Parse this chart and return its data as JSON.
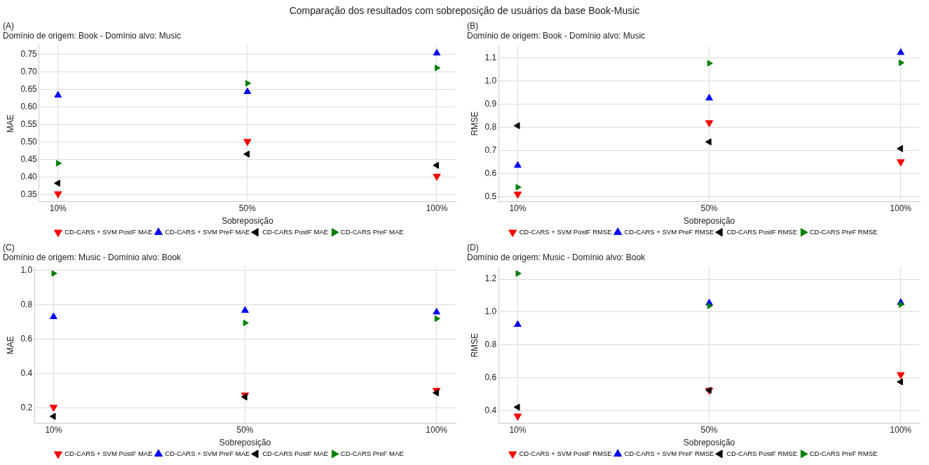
{
  "chart_data": [
    {
      "type": "scatter",
      "title": "(A)",
      "subtitle": "Domínio de origem: Book - Domínio alvo: Music",
      "annotations": [
        "Comparação dos resultados com sobreposição de usuários da base Book-Music"
      ],
      "xlabel": "Sobreposição",
      "ylabel": "MAE",
      "categories": [
        "10%",
        "50%",
        "100%"
      ],
      "ylim": [
        0.329,
        0.775
      ],
      "yticks": [
        {
          "value": 0.35,
          "label": "0.35"
        },
        {
          "value": 0.4,
          "label": "0.40"
        },
        {
          "value": 0.45,
          "label": "0.45"
        },
        {
          "value": 0.5,
          "label": "0.50"
        },
        {
          "value": 0.55,
          "label": "0.55"
        },
        {
          "value": 0.6,
          "label": "0.60"
        },
        {
          "value": 0.65,
          "label": "0.65"
        },
        {
          "value": 0.7,
          "label": "0.70"
        },
        {
          "value": 0.75,
          "label": "0.75"
        }
      ],
      "grid": true,
      "legend": "bottom",
      "marker": "triangle",
      "series": [
        {
          "name": "CD-CARS + SVM PostF MAE",
          "color": "#ff0000",
          "values": [
            0.352,
            0.501,
            0.402
          ]
        },
        {
          "name": "CD-CARS + SVM PreF MAE",
          "color": "#0000ff",
          "values": [
            0.633,
            0.643,
            0.753
          ]
        },
        {
          "name": "CD-CARS PostF MAE",
          "color": "#000000",
          "values": [
            0.382,
            0.465,
            0.433
          ]
        },
        {
          "name": "CD-CARS PreF MAE",
          "color": "#008000",
          "values": [
            0.439,
            0.667,
            0.711
          ]
        }
      ]
    },
    {
      "type": "scatter",
      "title": "(B)",
      "subtitle": "Domínio de origem: Book - Domínio alvo: Music",
      "xlabel": "Sobreposição",
      "ylabel": "RMSE",
      "categories": [
        "10%",
        "50%",
        "100%"
      ],
      "ylim": [
        0.478,
        1.154
      ],
      "yticks": [
        {
          "value": 0.5,
          "label": "0.5"
        },
        {
          "value": 0.6,
          "label": "0.6"
        },
        {
          "value": 0.7,
          "label": "0.7"
        },
        {
          "value": 0.8,
          "label": "0.8"
        },
        {
          "value": 0.9,
          "label": "0.9"
        },
        {
          "value": 1.0,
          "label": "1.0"
        },
        {
          "value": 1.1,
          "label": "1.1"
        }
      ],
      "grid": true,
      "legend": "bottom",
      "marker": "triangle",
      "series": [
        {
          "name": "CD-CARS + SVM PostF RMSE",
          "color": "#ff0000",
          "values": [
            0.511,
            0.82,
            0.651
          ]
        },
        {
          "name": "CD-CARS + SVM PreF RMSE",
          "color": "#0000ff",
          "values": [
            0.635,
            0.926,
            1.123
          ]
        },
        {
          "name": "CD-CARS PostF RMSE",
          "color": "#000000",
          "values": [
            0.807,
            0.737,
            0.708
          ]
        },
        {
          "name": "CD-CARS PreF RMSE",
          "color": "#008000",
          "values": [
            0.541,
            1.077,
            1.079
          ]
        }
      ]
    },
    {
      "type": "scatter",
      "title": "(C)",
      "subtitle": "Domínio de origem: Music - Domínio alvo: Book",
      "xlabel": "Sobreposição",
      "ylabel": "MAE",
      "categories": [
        "10%",
        "50%",
        "100%"
      ],
      "ylim": [
        0.111,
        1.02
      ],
      "yticks": [
        {
          "value": 0.2,
          "label": "0.2"
        },
        {
          "value": 0.4,
          "label": "0.4"
        },
        {
          "value": 0.6,
          "label": "0.6"
        },
        {
          "value": 0.8,
          "label": "0.8"
        },
        {
          "value": 1.0,
          "label": "1.0"
        }
      ],
      "grid": true,
      "legend": "bottom",
      "marker": "triangle",
      "series": [
        {
          "name": "CD-CARS + SVM PostF MAE",
          "color": "#ff0000",
          "values": [
            0.205,
            0.276,
            0.303
          ]
        },
        {
          "name": "CD-CARS + SVM PreF MAE",
          "color": "#0000ff",
          "values": [
            0.731,
            0.768,
            0.758
          ]
        },
        {
          "name": "CD-CARS PostF MAE",
          "color": "#000000",
          "values": [
            0.152,
            0.265,
            0.289
          ]
        },
        {
          "name": "CD-CARS PreF MAE",
          "color": "#008000",
          "values": [
            0.983,
            0.695,
            0.72
          ]
        }
      ]
    },
    {
      "type": "scatter",
      "title": "(D)",
      "subtitle": "Domínio de origem: Music - Domínio alvo: Book",
      "xlabel": "Sobreposição",
      "ylabel": "RMSE",
      "categories": [
        "10%",
        "50%",
        "100%"
      ],
      "ylim": [
        0.322,
        1.274
      ],
      "yticks": [
        {
          "value": 0.4,
          "label": "0.4"
        },
        {
          "value": 0.6,
          "label": "0.6"
        },
        {
          "value": 0.8,
          "label": "0.8"
        },
        {
          "value": 1.0,
          "label": "1.0"
        },
        {
          "value": 1.2,
          "label": "1.2"
        }
      ],
      "grid": true,
      "legend": "bottom",
      "marker": "triangle",
      "series": [
        {
          "name": "CD-CARS + SVM PostF RMSE",
          "color": "#ff0000",
          "values": [
            0.367,
            0.524,
            0.619
          ]
        },
        {
          "name": "CD-CARS + SVM PreF RMSE",
          "color": "#0000ff",
          "values": [
            0.924,
            1.055,
            1.058
          ]
        },
        {
          "name": "CD-CARS PostF RMSE",
          "color": "#000000",
          "values": [
            0.421,
            0.524,
            0.575
          ]
        },
        {
          "name": "CD-CARS PreF RMSE",
          "color": "#008000",
          "values": [
            1.235,
            1.038,
            1.046
          ]
        }
      ]
    }
  ]
}
